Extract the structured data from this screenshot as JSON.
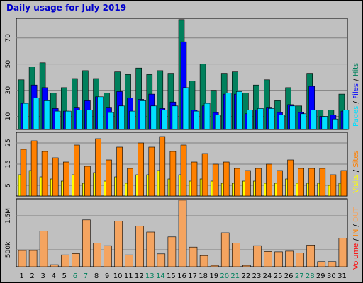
{
  "title": "Daily usage for July 2019",
  "colors": {
    "background": "#c0c0c0",
    "title": "#0000cc",
    "hits": "#00805c",
    "files": "#0000ff",
    "pages": "#00e0ff",
    "sites": "#ff8000",
    "visits": "#ffff00",
    "kbytes": "#ff0000",
    "kbytes_in": "#ff8000",
    "kbytes_out": "#f4a460"
  },
  "labels": {
    "pages": "Pages",
    "files": "Files",
    "hits": "Hits",
    "visits": "Visits",
    "sites": "Sites",
    "volume": "Volume",
    "in": "IN",
    "out": "OUT",
    "sep": " / "
  },
  "chart_data": [
    {
      "type": "bar",
      "panel": "top",
      "x": [
        1,
        2,
        3,
        4,
        5,
        6,
        7,
        8,
        9,
        10,
        11,
        12,
        13,
        14,
        15,
        16,
        17,
        18,
        19,
        20,
        21,
        22,
        23,
        24,
        25,
        26,
        27,
        28,
        29,
        30,
        31
      ],
      "ticks": [
        "10",
        "30",
        "50",
        "70"
      ],
      "ylim": [
        0,
        85
      ],
      "series": [
        {
          "name": "Hits",
          "values": [
            38,
            48,
            51,
            28,
            32,
            39,
            45,
            39,
            28,
            44,
            42,
            47,
            42,
            45,
            43,
            84,
            37,
            50,
            30,
            43,
            44,
            28,
            34,
            38,
            22,
            32,
            18,
            43,
            15,
            15,
            27
          ]
        },
        {
          "name": "Files",
          "values": [
            20,
            34,
            32,
            16,
            14,
            17,
            22,
            25,
            17,
            29,
            24,
            23,
            27,
            16,
            21,
            67,
            15,
            18,
            13,
            27,
            27,
            12,
            15,
            17,
            13,
            19,
            13,
            33,
            10,
            11,
            14
          ]
        },
        {
          "name": "Pages",
          "values": [
            20,
            24,
            22,
            14,
            14,
            15,
            15,
            25,
            13,
            18,
            14,
            22,
            18,
            15,
            18,
            32,
            14,
            20,
            11,
            28,
            29,
            15,
            16,
            16,
            11,
            18,
            12,
            15,
            10,
            8,
            15
          ]
        }
      ]
    },
    {
      "type": "bar",
      "panel": "middle",
      "x": [
        1,
        2,
        3,
        4,
        5,
        6,
        7,
        8,
        9,
        10,
        11,
        12,
        13,
        14,
        15,
        16,
        17,
        18,
        19,
        20,
        21,
        22,
        23,
        24,
        25,
        26,
        27,
        28,
        29,
        30,
        31
      ],
      "ticks": [
        "5",
        "15",
        "25"
      ],
      "ylim": [
        0,
        30
      ],
      "series": [
        {
          "name": "Visits",
          "values": [
            10,
            12,
            9,
            8,
            7,
            10,
            6,
            11,
            7,
            9,
            6,
            10,
            10,
            12,
            8,
            10,
            7,
            8,
            7,
            6,
            6,
            7,
            7,
            6,
            6,
            8,
            6,
            6,
            6,
            5,
            6
          ]
        },
        {
          "name": "Sites",
          "values": [
            22,
            26,
            21,
            18,
            16,
            24,
            14,
            27,
            17,
            23,
            13,
            25,
            23,
            28,
            21,
            24,
            16,
            20,
            15,
            16,
            13,
            12,
            13,
            15,
            12,
            17,
            13,
            13,
            13,
            10,
            12
          ]
        }
      ]
    },
    {
      "type": "bar",
      "panel": "bottom",
      "x": [
        1,
        2,
        3,
        4,
        5,
        6,
        7,
        8,
        9,
        10,
        11,
        12,
        13,
        14,
        15,
        16,
        17,
        18,
        19,
        20,
        21,
        22,
        23,
        24,
        25,
        26,
        27,
        28,
        29,
        30,
        31
      ],
      "ticks": [
        "500k",
        "1.5M"
      ],
      "ylim": [
        0,
        2000000
      ],
      "series": [
        {
          "name": "Volume",
          "values": [
            480000,
            480000,
            1050000,
            60000,
            350000,
            390000,
            1380000,
            700000,
            620000,
            1340000,
            350000,
            1200000,
            1020000,
            380000,
            880000,
            1960000,
            580000,
            330000,
            40000,
            1000000,
            700000,
            40000,
            620000,
            450000,
            440000,
            460000,
            410000,
            640000,
            150000,
            150000,
            840000
          ]
        }
      ]
    }
  ],
  "days": [
    "1",
    "2",
    "3",
    "4",
    "5",
    "6",
    "7",
    "8",
    "9",
    "10",
    "11",
    "12",
    "13",
    "14",
    "15",
    "16",
    "17",
    "18",
    "19",
    "20",
    "21",
    "22",
    "23",
    "24",
    "25",
    "26",
    "27",
    "28",
    "29",
    "30",
    "31"
  ],
  "weekend_days": [
    6,
    7,
    13,
    14,
    20,
    21,
    27,
    28
  ]
}
